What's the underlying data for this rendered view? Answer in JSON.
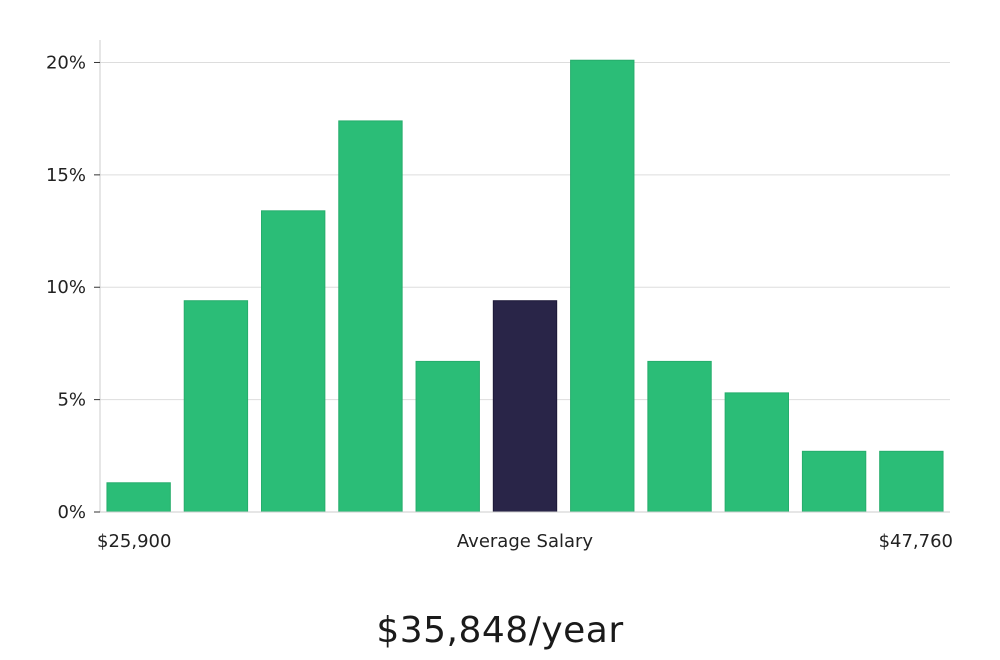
{
  "chart_data": {
    "type": "bar",
    "categories": [
      "1",
      "2",
      "3",
      "4",
      "5",
      "6",
      "7",
      "8",
      "9",
      "10",
      "11"
    ],
    "values": [
      1.3,
      9.4,
      13.4,
      17.4,
      6.7,
      9.4,
      20.1,
      6.7,
      5.3,
      2.7,
      2.7
    ],
    "highlight_index": 5,
    "ylim": [
      0,
      21
    ],
    "yticks": [
      0,
      5,
      10,
      15,
      20
    ],
    "ytick_labels": [
      "0%",
      "5%",
      "10%",
      "15%",
      "20%"
    ],
    "grid": true,
    "colors": {
      "bar": "#2bbd77",
      "bar_stroke": "#26ad6c",
      "highlight": "#292548",
      "grid": "#dddddd",
      "axis": "#cccccc"
    },
    "x_labels": {
      "left": "$25,900",
      "center": "Average Salary",
      "right": "$47,760"
    }
  },
  "headline": "$35,848/year"
}
